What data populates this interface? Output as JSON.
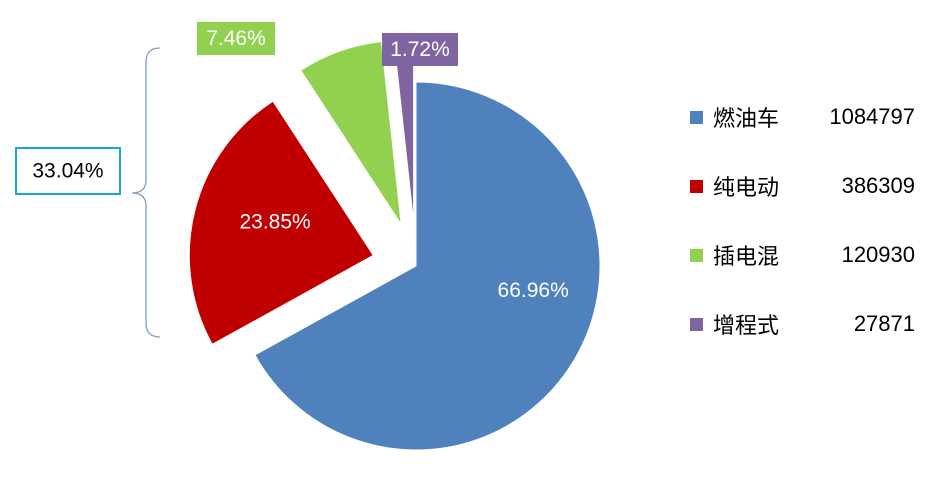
{
  "chart_data": {
    "type": "pie",
    "slices": [
      {
        "name": "燃油车",
        "value": 1084797,
        "percent_label": "66.96%",
        "color": "#4F81BD",
        "exploded": false
      },
      {
        "name": "纯电动",
        "value": 386309,
        "percent_label": "23.85%",
        "color": "#C00000",
        "exploded": true
      },
      {
        "name": "插电混",
        "value": 120930,
        "percent_label": "7.46%",
        "color": "#92D050",
        "exploded": true
      },
      {
        "name": "增程式",
        "value": 27871,
        "percent_label": "1.72%",
        "color": "#8064A2",
        "exploded": true
      }
    ],
    "group_bracket": {
      "label": "33.04%",
      "border_color": "#1CA3DC"
    },
    "legend_position": "right"
  }
}
